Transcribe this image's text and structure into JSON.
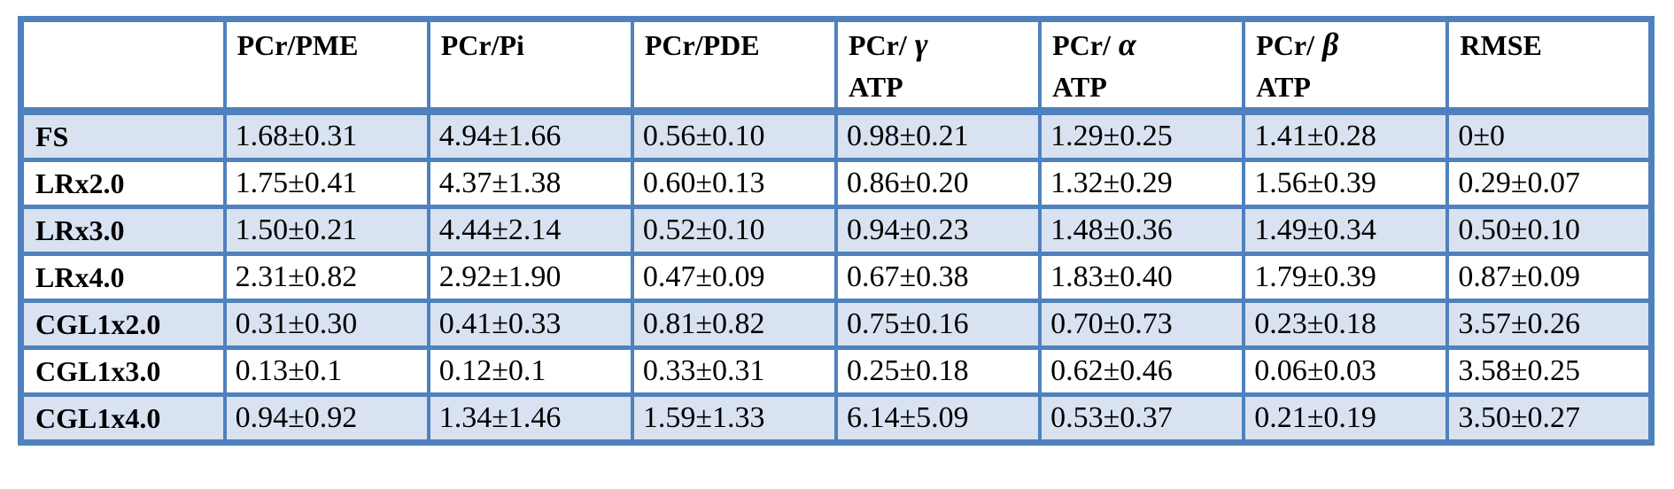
{
  "colors": {
    "border_blue": "#4f81bd",
    "row_shade_blue": "#d9e2f1",
    "background": "#ffffff",
    "text": "#000000"
  },
  "chart_data": {
    "type": "table",
    "title": "",
    "columns": [
      {
        "label": "",
        "greek": "",
        "line2": ""
      },
      {
        "label": "PCr/PME",
        "greek": "",
        "line2": ""
      },
      {
        "label": "PCr/Pi",
        "greek": "",
        "line2": ""
      },
      {
        "label": "PCr/PDE",
        "greek": "",
        "line2": ""
      },
      {
        "label": "PCr/",
        "greek": "γ",
        "line2": "ATP"
      },
      {
        "label": "PCr/",
        "greek": "α",
        "line2": "ATP"
      },
      {
        "label": "PCr/",
        "greek": "β",
        "line2": "ATP"
      },
      {
        "label": "RMSE",
        "greek": "",
        "line2": ""
      }
    ],
    "rows": [
      {
        "label": "FS",
        "values": [
          "1.68±0.31",
          "4.94±1.66",
          "0.56±0.10",
          "0.98±0.21",
          "1.29±0.25",
          "1.41±0.28",
          "0±0"
        ]
      },
      {
        "label": "LRx2.0",
        "values": [
          "1.75±0.41",
          "4.37±1.38",
          "0.60±0.13",
          "0.86±0.20",
          "1.32±0.29",
          "1.56±0.39",
          "0.29±0.07"
        ]
      },
      {
        "label": "LRx3.0",
        "values": [
          "1.50±0.21",
          "4.44±2.14",
          "0.52±0.10",
          "0.94±0.23",
          "1.48±0.36",
          "1.49±0.34",
          "0.50±0.10"
        ]
      },
      {
        "label": "LRx4.0",
        "values": [
          "2.31±0.82",
          "2.92±1.90",
          "0.47±0.09",
          "0.67±0.38",
          "1.83±0.40",
          "1.79±0.39",
          "0.87±0.09"
        ]
      },
      {
        "label": "CGL1x2.0",
        "values": [
          "0.31±0.30",
          "0.41±0.33",
          "0.81±0.82",
          "0.75±0.16",
          "0.70±0.73",
          "0.23±0.18",
          "3.57±0.26"
        ]
      },
      {
        "label": "CGL1x3.0",
        "values": [
          "0.13±0.1",
          "0.12±0.1",
          "0.33±0.31",
          "0.25±0.18",
          "0.62±0.46",
          "0.06±0.03",
          "3.58±0.25"
        ]
      },
      {
        "label": "CGL1x4.0",
        "values": [
          "0.94±0.92",
          "1.34±1.46",
          "1.59±1.33",
          "6.14±5.09",
          "0.53±0.37",
          "0.21±0.19",
          "3.50±0.27"
        ]
      }
    ]
  }
}
